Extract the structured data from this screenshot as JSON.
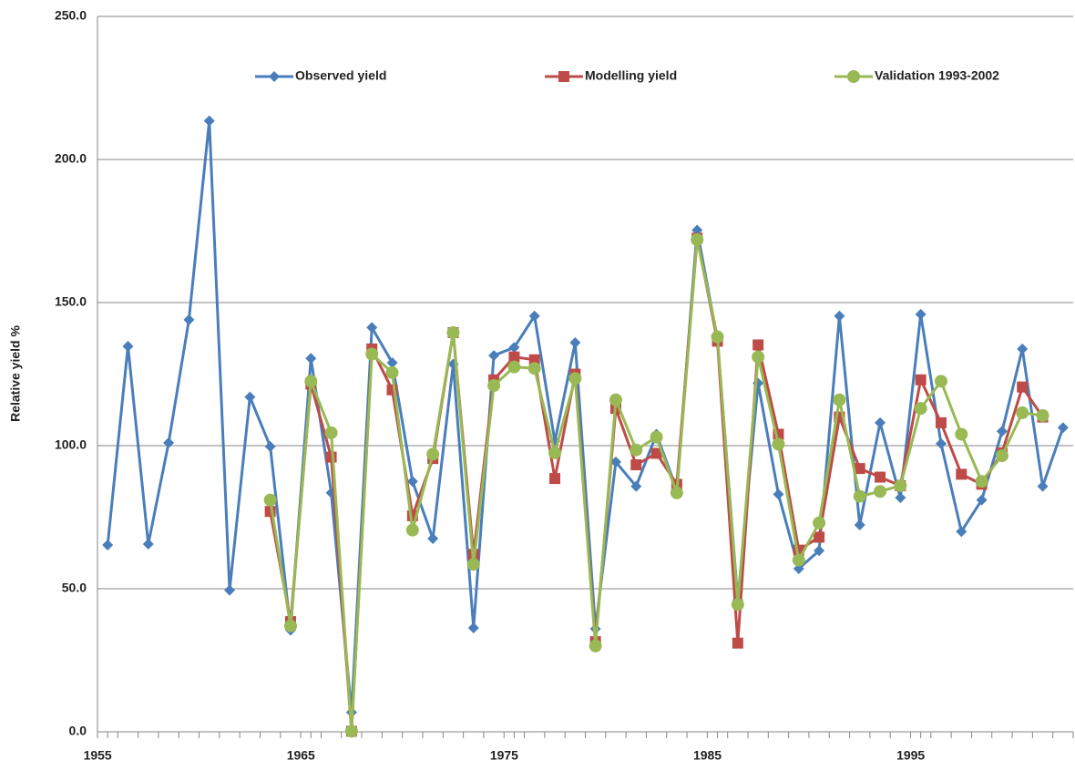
{
  "chart_data": {
    "type": "line",
    "y_label": "Relative yield %",
    "x": [
      1955,
      1956,
      1957,
      1958,
      1959,
      1960,
      1961,
      1962,
      1963,
      1964,
      1965,
      1966,
      1967,
      1968,
      1969,
      1970,
      1971,
      1972,
      1973,
      1974,
      1975,
      1976,
      1977,
      1978,
      1979,
      1980,
      1981,
      1982,
      1983,
      1984,
      1985,
      1986,
      1987,
      1988,
      1989,
      1990,
      1991,
      1992,
      1993,
      1994,
      1995,
      1996,
      1997,
      1998,
      1999,
      2000,
      2001,
      2002
    ],
    "series": [
      {
        "name": "Observed yield",
        "color": "#4a7ebb",
        "marker": "diamond",
        "values": [
          65.3,
          134.7,
          65.6,
          101,
          144,
          213.5,
          49.5,
          117,
          99.7,
          35.5,
          130.5,
          83.5,
          6.8,
          141.3,
          129,
          87.5,
          67.5,
          128.5,
          36.3,
          131.5,
          134.3,
          145.3,
          101.5,
          136,
          36,
          94.3,
          85.8,
          104,
          84.5,
          175.3,
          137,
          46,
          121.8,
          83,
          57,
          63.3,
          145.3,
          72.3,
          108,
          81.8,
          145.9,
          100.7,
          70,
          81,
          105,
          133.8,
          85.8,
          106.3
        ]
      },
      {
        "name": "Modelling yield",
        "color": "#be4b48",
        "marker": "square",
        "values": [
          null,
          null,
          null,
          null,
          null,
          null,
          null,
          null,
          77,
          38.5,
          121.5,
          96,
          0.2,
          133.8,
          119.5,
          75.5,
          95.5,
          139.5,
          62,
          123,
          131,
          130,
          88.5,
          125,
          31.5,
          113,
          93.3,
          97.3,
          86.5,
          172.5,
          136.5,
          31,
          135.2,
          104,
          63.5,
          68,
          110,
          92,
          89,
          86,
          123,
          108,
          90,
          86.5,
          97.5,
          120.5,
          110,
          null
        ]
      },
      {
        "name": "Validation 1993-2002",
        "color": "#98b954",
        "marker": "circle",
        "values": [
          null,
          null,
          null,
          null,
          null,
          null,
          null,
          null,
          81,
          37,
          122.5,
          104.5,
          0.2,
          132,
          125.5,
          70.5,
          97,
          139.5,
          58.5,
          121,
          127.5,
          127,
          97.5,
          123.5,
          30,
          116,
          98.5,
          103,
          83.5,
          172,
          138,
          44.5,
          131,
          100.5,
          60,
          73,
          116,
          82.3,
          84,
          86,
          113,
          122.5,
          104,
          87.5,
          96.5,
          111.5,
          110.5,
          null
        ]
      }
    ],
    "xlim": [
      1954.5,
      2002.5
    ],
    "xticks": [
      1955,
      1965,
      1975,
      1985,
      1995
    ],
    "ylim": [
      0,
      250
    ],
    "yticks": [
      {
        "value": 0,
        "label": "0.0"
      },
      {
        "value": 50,
        "label": "50.0"
      },
      {
        "value": 100,
        "label": "100.0"
      },
      {
        "value": 150,
        "label": "150.0"
      },
      {
        "value": 200,
        "label": "200.0"
      },
      {
        "value": 250,
        "label": "250.0"
      }
    ],
    "grid": true,
    "legend": "top"
  }
}
